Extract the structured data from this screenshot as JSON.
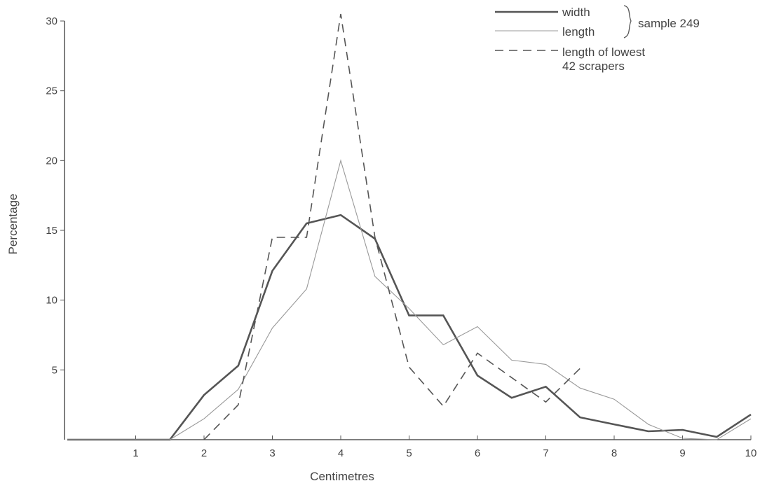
{
  "chart_data": {
    "type": "line",
    "xlabel": "Centimetres",
    "ylabel": "Percentage",
    "xlim": [
      0,
      10
    ],
    "ylim": [
      0,
      30
    ],
    "x_ticks": [
      "1",
      "2",
      "3",
      "4",
      "5",
      "6",
      "7",
      "8",
      "9",
      "10"
    ],
    "y_ticks": [
      "5",
      "10",
      "15",
      "20",
      "25",
      "30"
    ],
    "grid": false,
    "legend_position": "top-right",
    "legend_group_label": "sample 249",
    "series": [
      {
        "name": "width",
        "style": "solid-thick",
        "color": "#555555",
        "x": [
          0,
          1.5,
          2,
          2.5,
          3,
          3.5,
          4,
          4.5,
          5,
          5.5,
          6,
          6.5,
          7,
          7.5,
          8,
          8.5,
          9,
          9.5,
          10
        ],
        "y": [
          0,
          0,
          3.2,
          5.3,
          12.1,
          15.5,
          16.1,
          14.4,
          8.9,
          8.9,
          4.6,
          3.0,
          3.8,
          1.6,
          1.1,
          0.6,
          0.7,
          0.2,
          1.8
        ]
      },
      {
        "name": "length",
        "style": "solid-thin",
        "color": "#999999",
        "x": [
          0,
          1.5,
          2,
          2.5,
          3,
          3.5,
          4,
          4.5,
          5,
          5.5,
          6,
          6.5,
          7,
          7.5,
          8,
          8.5,
          9,
          9.5,
          10
        ],
        "y": [
          0,
          0,
          1.5,
          3.6,
          8.0,
          10.8,
          20.0,
          11.7,
          9.4,
          6.8,
          8.1,
          5.7,
          5.4,
          3.7,
          2.9,
          1.1,
          0.1,
          0.0,
          1.5
        ]
      },
      {
        "name": "length of lowest 42 scrapers",
        "style": "dashed",
        "color": "#555555",
        "x": [
          2,
          2.5,
          3,
          3.5,
          4,
          4.5,
          5,
          5.5,
          6,
          7,
          7.5
        ],
        "y": [
          0,
          2.5,
          14.5,
          14.5,
          30.5,
          14.5,
          5.2,
          2.4,
          6.2,
          2.7,
          5.1
        ]
      }
    ],
    "legend_lines": [
      "width",
      "length",
      "length of lowest",
      "42 scrapers"
    ]
  }
}
